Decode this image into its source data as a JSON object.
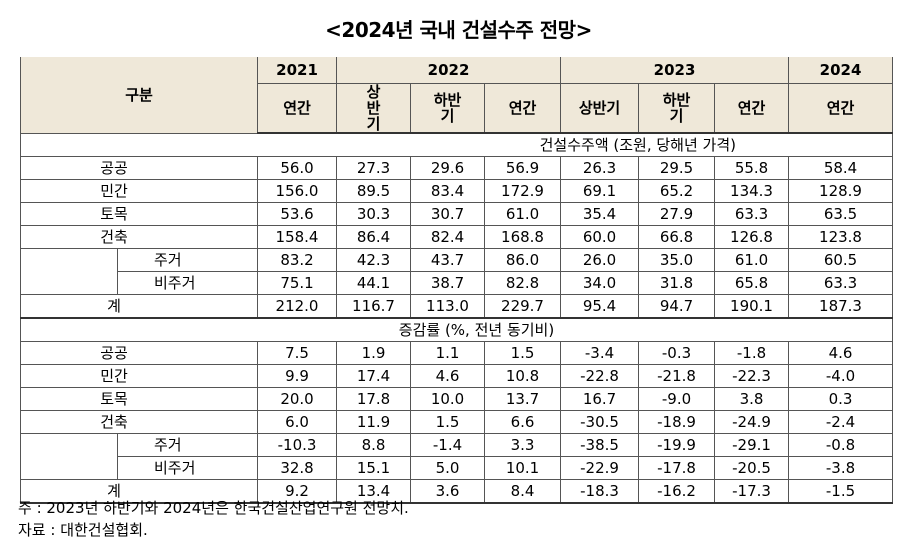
{
  "title": "<2024년 국내 건설수주 전망>",
  "header": {
    "gubun": "구분",
    "years": [
      "2021",
      "2022",
      "2023",
      "2024"
    ],
    "sub": {
      "y2021": [
        "연간"
      ],
      "y2022": [
        "상반기",
        "하반기",
        "연간"
      ],
      "y2023": [
        "상반기",
        "하반기",
        "연간"
      ],
      "y2024": [
        "연간"
      ]
    }
  },
  "section1": {
    "caption": "건설수주액 (조원, 당해년 가격)",
    "rows": [
      {
        "label": "공공",
        "values": [
          "56.0",
          "27.3",
          "29.6",
          "56.9",
          "26.3",
          "29.5",
          "55.8",
          "58.4"
        ]
      },
      {
        "label": "민간",
        "values": [
          "156.0",
          "89.5",
          "83.4",
          "172.9",
          "69.1",
          "65.2",
          "134.3",
          "128.9"
        ]
      },
      {
        "label": "토목",
        "values": [
          "53.6",
          "30.3",
          "30.7",
          "61.0",
          "35.4",
          "27.9",
          "63.3",
          "63.5"
        ]
      },
      {
        "label": "건축",
        "values": [
          "158.4",
          "86.4",
          "82.4",
          "168.8",
          "60.0",
          "66.8",
          "126.8",
          "123.8"
        ]
      },
      {
        "label": "주거",
        "values": [
          "83.2",
          "42.3",
          "43.7",
          "86.0",
          "26.0",
          "35.0",
          "61.0",
          "60.5"
        ]
      },
      {
        "label": "비주거",
        "values": [
          "75.1",
          "44.1",
          "38.7",
          "82.8",
          "34.0",
          "31.8",
          "65.8",
          "63.3"
        ]
      },
      {
        "label": "계",
        "values": [
          "212.0",
          "116.7",
          "113.0",
          "229.7",
          "95.4",
          "94.7",
          "190.1",
          "187.3"
        ]
      }
    ]
  },
  "section2": {
    "caption": "증감률 (%, 전년 동기비)",
    "rows": [
      {
        "label": "공공",
        "values": [
          "7.5",
          "1.9",
          "1.1",
          "1.5",
          "-3.4",
          "-0.3",
          "-1.8",
          "4.6"
        ]
      },
      {
        "label": "민간",
        "values": [
          "9.9",
          "17.4",
          "4.6",
          "10.8",
          "-22.8",
          "-21.8",
          "-22.3",
          "-4.0"
        ]
      },
      {
        "label": "토목",
        "values": [
          "20.0",
          "17.8",
          "10.0",
          "13.7",
          "16.7",
          "-9.0",
          "3.8",
          "0.3"
        ]
      },
      {
        "label": "건축",
        "values": [
          "6.0",
          "11.9",
          "1.5",
          "6.6",
          "-30.5",
          "-18.9",
          "-24.9",
          "-2.4"
        ]
      },
      {
        "label": "주거",
        "values": [
          "-10.3",
          "8.8",
          "-1.4",
          "3.3",
          "-38.5",
          "-19.9",
          "-29.1",
          "-0.8"
        ]
      },
      {
        "label": "비주거",
        "values": [
          "32.8",
          "15.1",
          "5.0",
          "10.1",
          "-22.9",
          "-17.8",
          "-20.5",
          "-3.8"
        ]
      },
      {
        "label": "계",
        "values": [
          "9.2",
          "13.4",
          "3.6",
          "8.4",
          "-18.3",
          "-16.2",
          "-17.3",
          "-1.5"
        ]
      }
    ]
  },
  "notes": {
    "note": "주 : 2023년 하반기와 2024년은 한국건설산업연구원 전망치.",
    "source": "자료 : 대한건설협회."
  }
}
